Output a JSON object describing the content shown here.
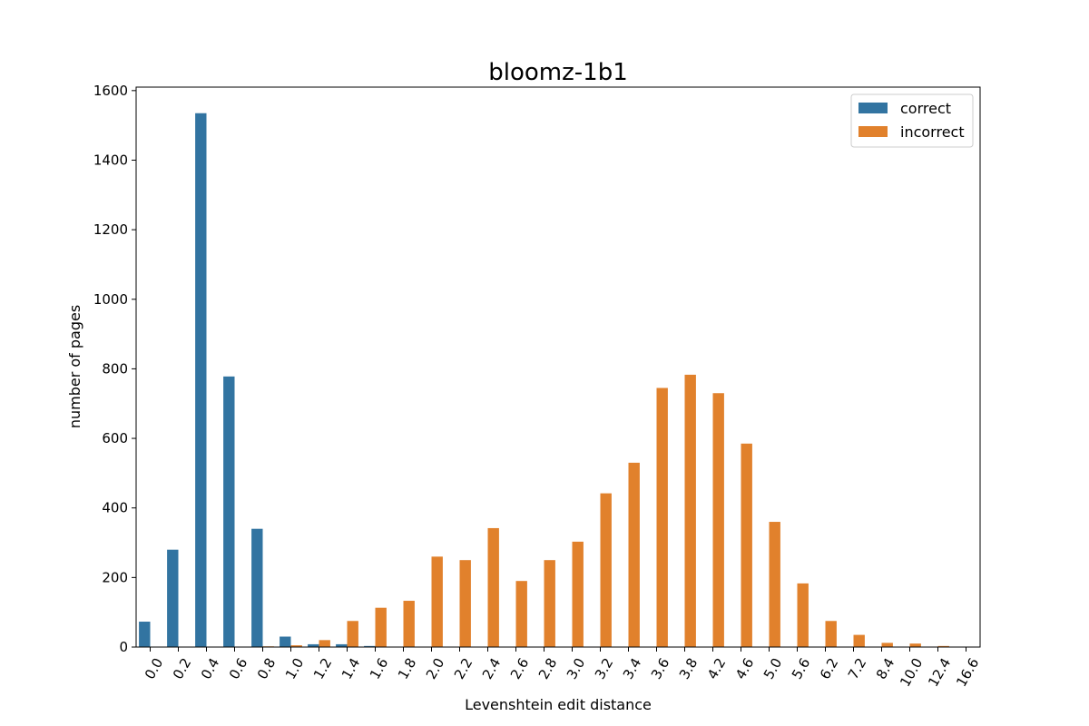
{
  "chart_data": {
    "type": "bar",
    "title": "bloomz-1b1",
    "xlabel": "Levenshtein edit distance",
    "ylabel": "number of pages",
    "ylim": [
      0,
      1610
    ],
    "yticks": [
      0,
      200,
      400,
      600,
      800,
      1000,
      1200,
      1400,
      1600
    ],
    "grid": false,
    "legend_position": "top-right",
    "categories": [
      "0.0",
      "0.2",
      "0.4",
      "0.6",
      "0.8",
      "1.0",
      "1.2",
      "1.4",
      "1.6",
      "1.8",
      "2.0",
      "2.2",
      "2.4",
      "2.6",
      "2.8",
      "3.0",
      "3.2",
      "3.4",
      "3.6",
      "3.8",
      "4.2",
      "4.6",
      "5.0",
      "5.6",
      "6.2",
      "7.2",
      "8.4",
      "10.0",
      "12.4",
      "16.6"
    ],
    "series": [
      {
        "name": "correct",
        "color": "#3274a1",
        "values": [
          73,
          280,
          1535,
          778,
          340,
          30,
          8,
          8,
          3,
          0,
          0,
          0,
          0,
          0,
          0,
          0,
          0,
          0,
          0,
          0,
          0,
          0,
          0,
          0,
          0,
          0,
          0,
          0,
          0,
          0
        ]
      },
      {
        "name": "incorrect",
        "color": "#e1812c",
        "values": [
          0,
          0,
          0,
          0,
          2,
          5,
          20,
          75,
          113,
          133,
          260,
          250,
          342,
          190,
          250,
          303,
          442,
          530,
          745,
          783,
          730,
          585,
          360,
          183,
          75,
          35,
          12,
          10,
          3,
          0
        ]
      }
    ]
  }
}
